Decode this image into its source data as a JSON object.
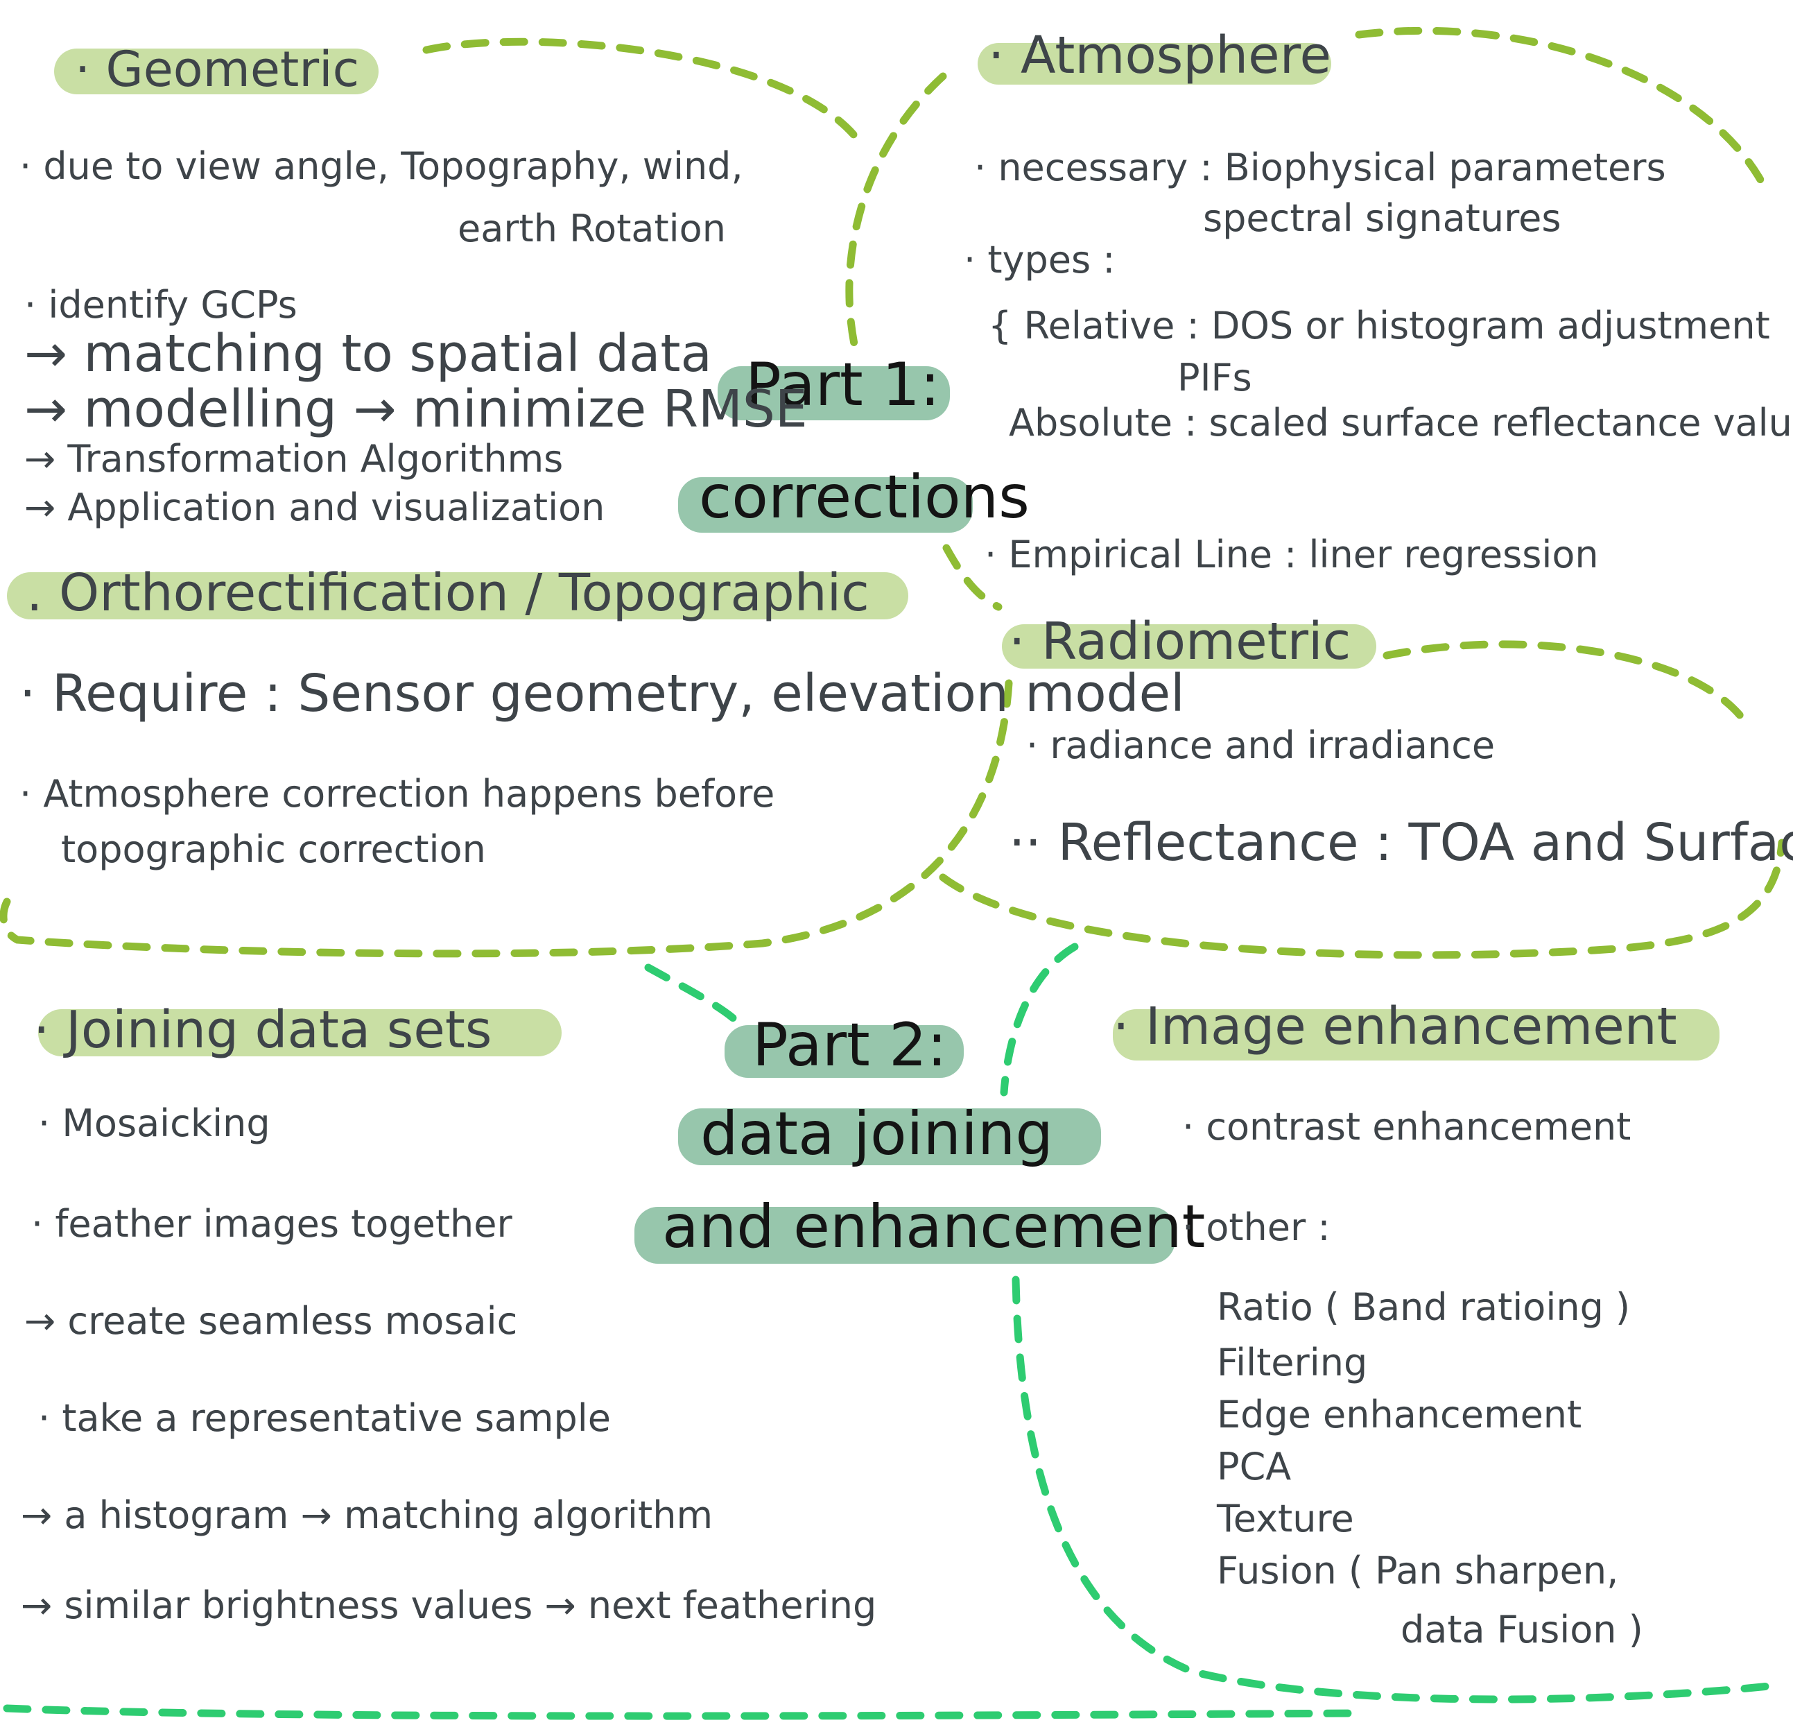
{
  "colors": {
    "ink": "#3e4449",
    "title_ink": "#141414",
    "highlight_light_green": "#c9dfa4",
    "highlight_teal": "#97c6ac",
    "dash_olive": "#8fbc34",
    "dash_emerald": "#2ecc71"
  },
  "part1": {
    "line1": "Part 1:",
    "line2": "corrections"
  },
  "part2": {
    "line1": "Part 2:",
    "line2": "data joining",
    "line3": "and enhancement"
  },
  "geometric": {
    "title": "· Geometric",
    "l1": "·  due to  view angle, Topography, wind,",
    "l2": "earth Rotation",
    "l3": "· identify GCPs",
    "l4": "→ matching to spatial data",
    "l5": "→ modelling → minimize RMSE",
    "l6": "→ Transformation Algorithms",
    "l7": "→ Application and visualization"
  },
  "ortho": {
    "title": ". Orthorectification / Topographic",
    "l1": "· Require : Sensor geometry, elevation model",
    "l2": "·  Atmosphere correction  happens  before",
    "l3": "topographic correction"
  },
  "atmosphere": {
    "title": "· Atmosphere",
    "l1": "·  necessary : Biophysical parameters",
    "l2": "spectral  signatures",
    "l3": "· types :",
    "l4": "{ Relative : DOS or histogram adjustment",
    "l5": "PIFs",
    "l6": "Absolute :  scaled surface reflectance values",
    "l7": "·  Empirical Line : liner regression"
  },
  "radiometric": {
    "title": "· Radiometric",
    "l1": "· radiance   and   irradiance",
    "l2": "·· Reflectance  :  TOA  and  Surface"
  },
  "joining": {
    "title": "· Joining   data sets",
    "l1": "· Mosaicking",
    "l2": "·  feather  images  together",
    "l3": "→ create  seamless  mosaic",
    "l4": "·  take  a  representative  sample",
    "l5": "→ a  histogram  → matching algorithm",
    "l6": "→ similar  brightness  values  → next  feathering"
  },
  "enhance": {
    "title": "· Image  enhancement",
    "l1": "· contrast  enhancement",
    "l2": "· other :",
    "l3": "Ratio ( Band  ratioing )",
    "l4": "Filtering",
    "l5": "Edge  enhancement",
    "l6": "PCA",
    "l7": "Texture",
    "l8": "Fusion ( Pan  sharpen,",
    "l9": "data  Fusion )"
  }
}
